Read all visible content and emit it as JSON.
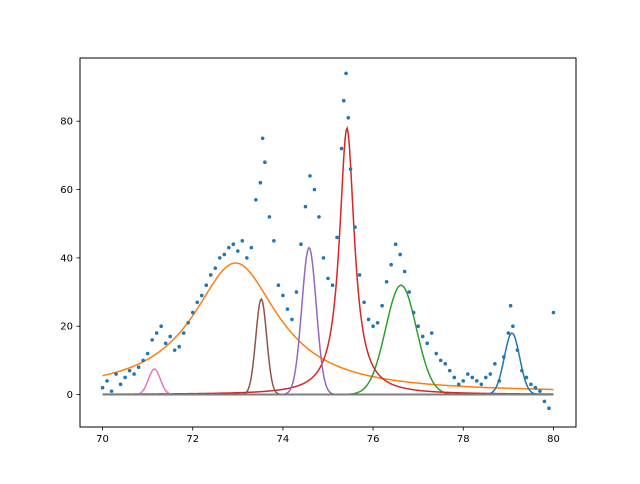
{
  "chart_data": {
    "type": "scatter",
    "title": "",
    "xlabel": "",
    "ylabel": "",
    "xlim": [
      69.5,
      80.5
    ],
    "ylim": [
      -9.5,
      98.5
    ],
    "grid": false,
    "legend": "none",
    "x_ticks": [
      70,
      72,
      74,
      76,
      78,
      80
    ],
    "x_tick_labels": [
      "70",
      "72",
      "74",
      "76",
      "78",
      "80"
    ],
    "y_ticks": [
      0,
      20,
      40,
      60,
      80
    ],
    "y_tick_labels": [
      "0",
      "20",
      "40",
      "60",
      "80"
    ],
    "scatter": {
      "color": "#1f77b4",
      "points": [
        [
          70.0,
          2
        ],
        [
          70.1,
          4
        ],
        [
          70.2,
          1
        ],
        [
          70.3,
          6
        ],
        [
          70.4,
          3
        ],
        [
          70.5,
          5
        ],
        [
          70.6,
          7
        ],
        [
          70.7,
          6
        ],
        [
          70.8,
          8
        ],
        [
          70.9,
          10
        ],
        [
          71.0,
          12
        ],
        [
          71.1,
          16
        ],
        [
          71.2,
          18
        ],
        [
          71.3,
          20
        ],
        [
          71.4,
          15
        ],
        [
          71.5,
          17
        ],
        [
          71.6,
          13
        ],
        [
          71.7,
          14
        ],
        [
          71.8,
          18
        ],
        [
          71.9,
          21
        ],
        [
          72.0,
          24
        ],
        [
          72.1,
          27
        ],
        [
          72.2,
          29
        ],
        [
          72.3,
          32
        ],
        [
          72.4,
          35
        ],
        [
          72.5,
          37
        ],
        [
          72.6,
          40
        ],
        [
          72.7,
          41
        ],
        [
          72.8,
          43
        ],
        [
          72.9,
          44
        ],
        [
          73.0,
          42
        ],
        [
          73.1,
          45
        ],
        [
          73.2,
          40
        ],
        [
          73.3,
          43
        ],
        [
          73.4,
          57
        ],
        [
          73.5,
          62
        ],
        [
          73.55,
          75
        ],
        [
          73.6,
          68
        ],
        [
          73.7,
          52
        ],
        [
          73.8,
          45
        ],
        [
          73.9,
          32
        ],
        [
          74.0,
          29
        ],
        [
          74.1,
          25
        ],
        [
          74.2,
          22
        ],
        [
          74.3,
          30
        ],
        [
          74.4,
          44
        ],
        [
          74.5,
          55
        ],
        [
          74.6,
          64
        ],
        [
          74.7,
          60
        ],
        [
          74.8,
          52
        ],
        [
          74.9,
          40
        ],
        [
          75.0,
          34
        ],
        [
          75.1,
          32
        ],
        [
          75.2,
          46
        ],
        [
          75.3,
          72
        ],
        [
          75.35,
          86
        ],
        [
          75.4,
          94
        ],
        [
          75.45,
          81
        ],
        [
          75.5,
          66
        ],
        [
          75.6,
          49
        ],
        [
          75.7,
          35
        ],
        [
          75.8,
          27
        ],
        [
          75.9,
          22
        ],
        [
          76.0,
          20
        ],
        [
          76.1,
          21
        ],
        [
          76.2,
          26
        ],
        [
          76.3,
          33
        ],
        [
          76.4,
          38
        ],
        [
          76.5,
          44
        ],
        [
          76.6,
          41
        ],
        [
          76.7,
          36
        ],
        [
          76.8,
          30
        ],
        [
          76.9,
          24
        ],
        [
          77.0,
          20
        ],
        [
          77.1,
          17
        ],
        [
          77.2,
          15
        ],
        [
          77.3,
          18
        ],
        [
          77.4,
          12
        ],
        [
          77.5,
          10
        ],
        [
          77.6,
          9
        ],
        [
          77.7,
          7
        ],
        [
          77.8,
          5
        ],
        [
          77.9,
          3
        ],
        [
          78.0,
          4
        ],
        [
          78.1,
          6
        ],
        [
          78.2,
          5
        ],
        [
          78.3,
          4
        ],
        [
          78.4,
          3
        ],
        [
          78.5,
          5
        ],
        [
          78.6,
          6
        ],
        [
          78.7,
          9
        ],
        [
          78.8,
          4
        ],
        [
          78.9,
          11
        ],
        [
          79.0,
          18
        ],
        [
          79.05,
          26
        ],
        [
          79.1,
          20
        ],
        [
          79.2,
          13
        ],
        [
          79.3,
          7
        ],
        [
          79.4,
          5
        ],
        [
          79.5,
          3
        ],
        [
          79.6,
          2
        ],
        [
          79.7,
          1
        ],
        [
          79.8,
          -2
        ],
        [
          79.9,
          -4
        ],
        [
          80.0,
          24
        ]
      ]
    },
    "series": [
      {
        "color": "#ff7f0e",
        "kind": "lorentz",
        "center": 72.95,
        "amplitude": 38,
        "width": 1.15,
        "offset": 0.5
      },
      {
        "color": "#2ca02c",
        "kind": "gauss",
        "center": 76.62,
        "amplitude": 32,
        "width": 0.34
      },
      {
        "color": "#d62728",
        "kind": "lorentz",
        "center": 75.42,
        "amplitude": 78,
        "width": 0.2
      },
      {
        "color": "#9467bd",
        "kind": "gauss",
        "center": 74.58,
        "amplitude": 43,
        "width": 0.16
      },
      {
        "color": "#8c564b",
        "kind": "gauss",
        "center": 73.52,
        "amplitude": 28,
        "width": 0.12
      },
      {
        "color": "#e377c2",
        "kind": "gauss",
        "center": 71.15,
        "amplitude": 7.5,
        "width": 0.13
      },
      {
        "color": "#1f77b4",
        "kind": "gauss",
        "center": 79.08,
        "amplitude": 18,
        "width": 0.17
      },
      {
        "color": "#7f7f7f",
        "kind": "flat",
        "value": 0
      }
    ]
  }
}
